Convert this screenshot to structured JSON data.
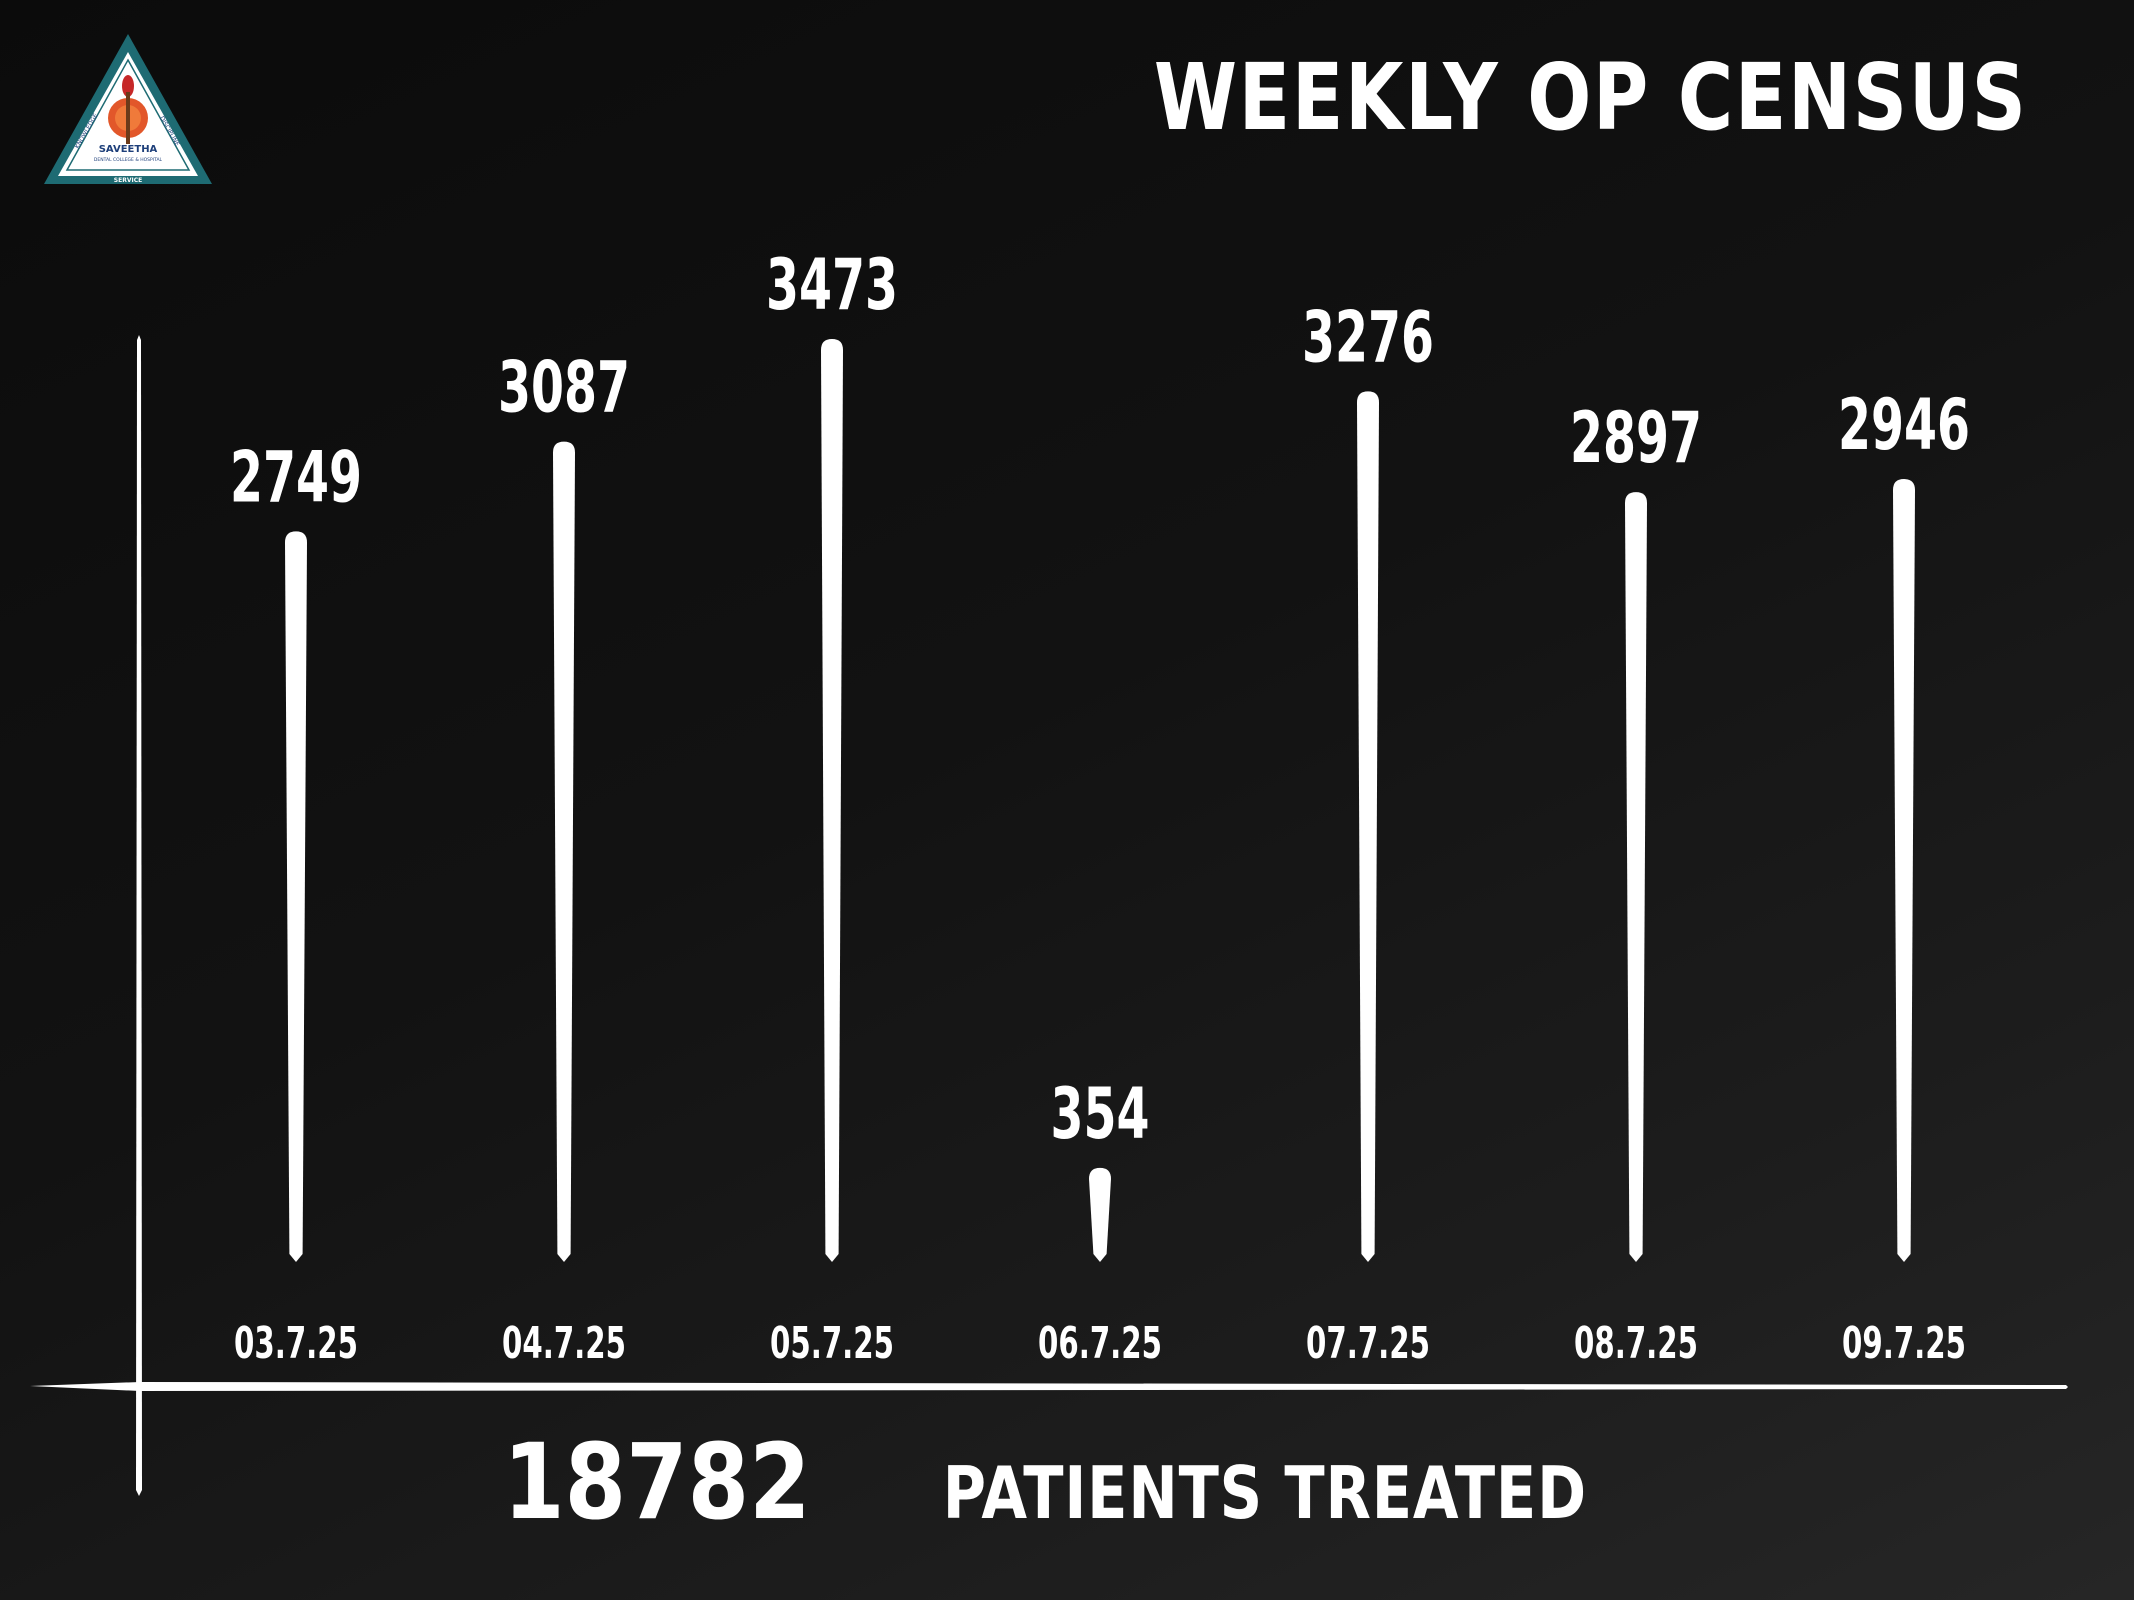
{
  "logo": {
    "name": "SAVEETHA",
    "subtitle": "DENTAL COLLEGE & HOSPITAL",
    "top_left_word": "KNOWLEDGE",
    "top_right_word": "DISCIPLINE",
    "bottom_word": "SERVICE",
    "colors": {
      "border": "#1e6b73",
      "inner": "#ffffff",
      "emblem": "#e2572a",
      "flame": "#c62828"
    }
  },
  "title": "WEEKLY OP CENSUS",
  "chart_data": {
    "type": "bar",
    "categories": [
      "03.7.25",
      "04.7.25",
      "05.7.25",
      "06.7.25",
      "07.7.25",
      "08.7.25",
      "09.7.25"
    ],
    "values": [
      2749,
      3087,
      3473,
      354,
      3276,
      2897,
      2946
    ],
    "title": "WEEKLY OP CENSUS",
    "xlabel": "",
    "ylabel": "",
    "grid": false,
    "bar_color": "#ffffff"
  },
  "total": {
    "value": "18782",
    "label": "PATIENTS TREATED"
  }
}
